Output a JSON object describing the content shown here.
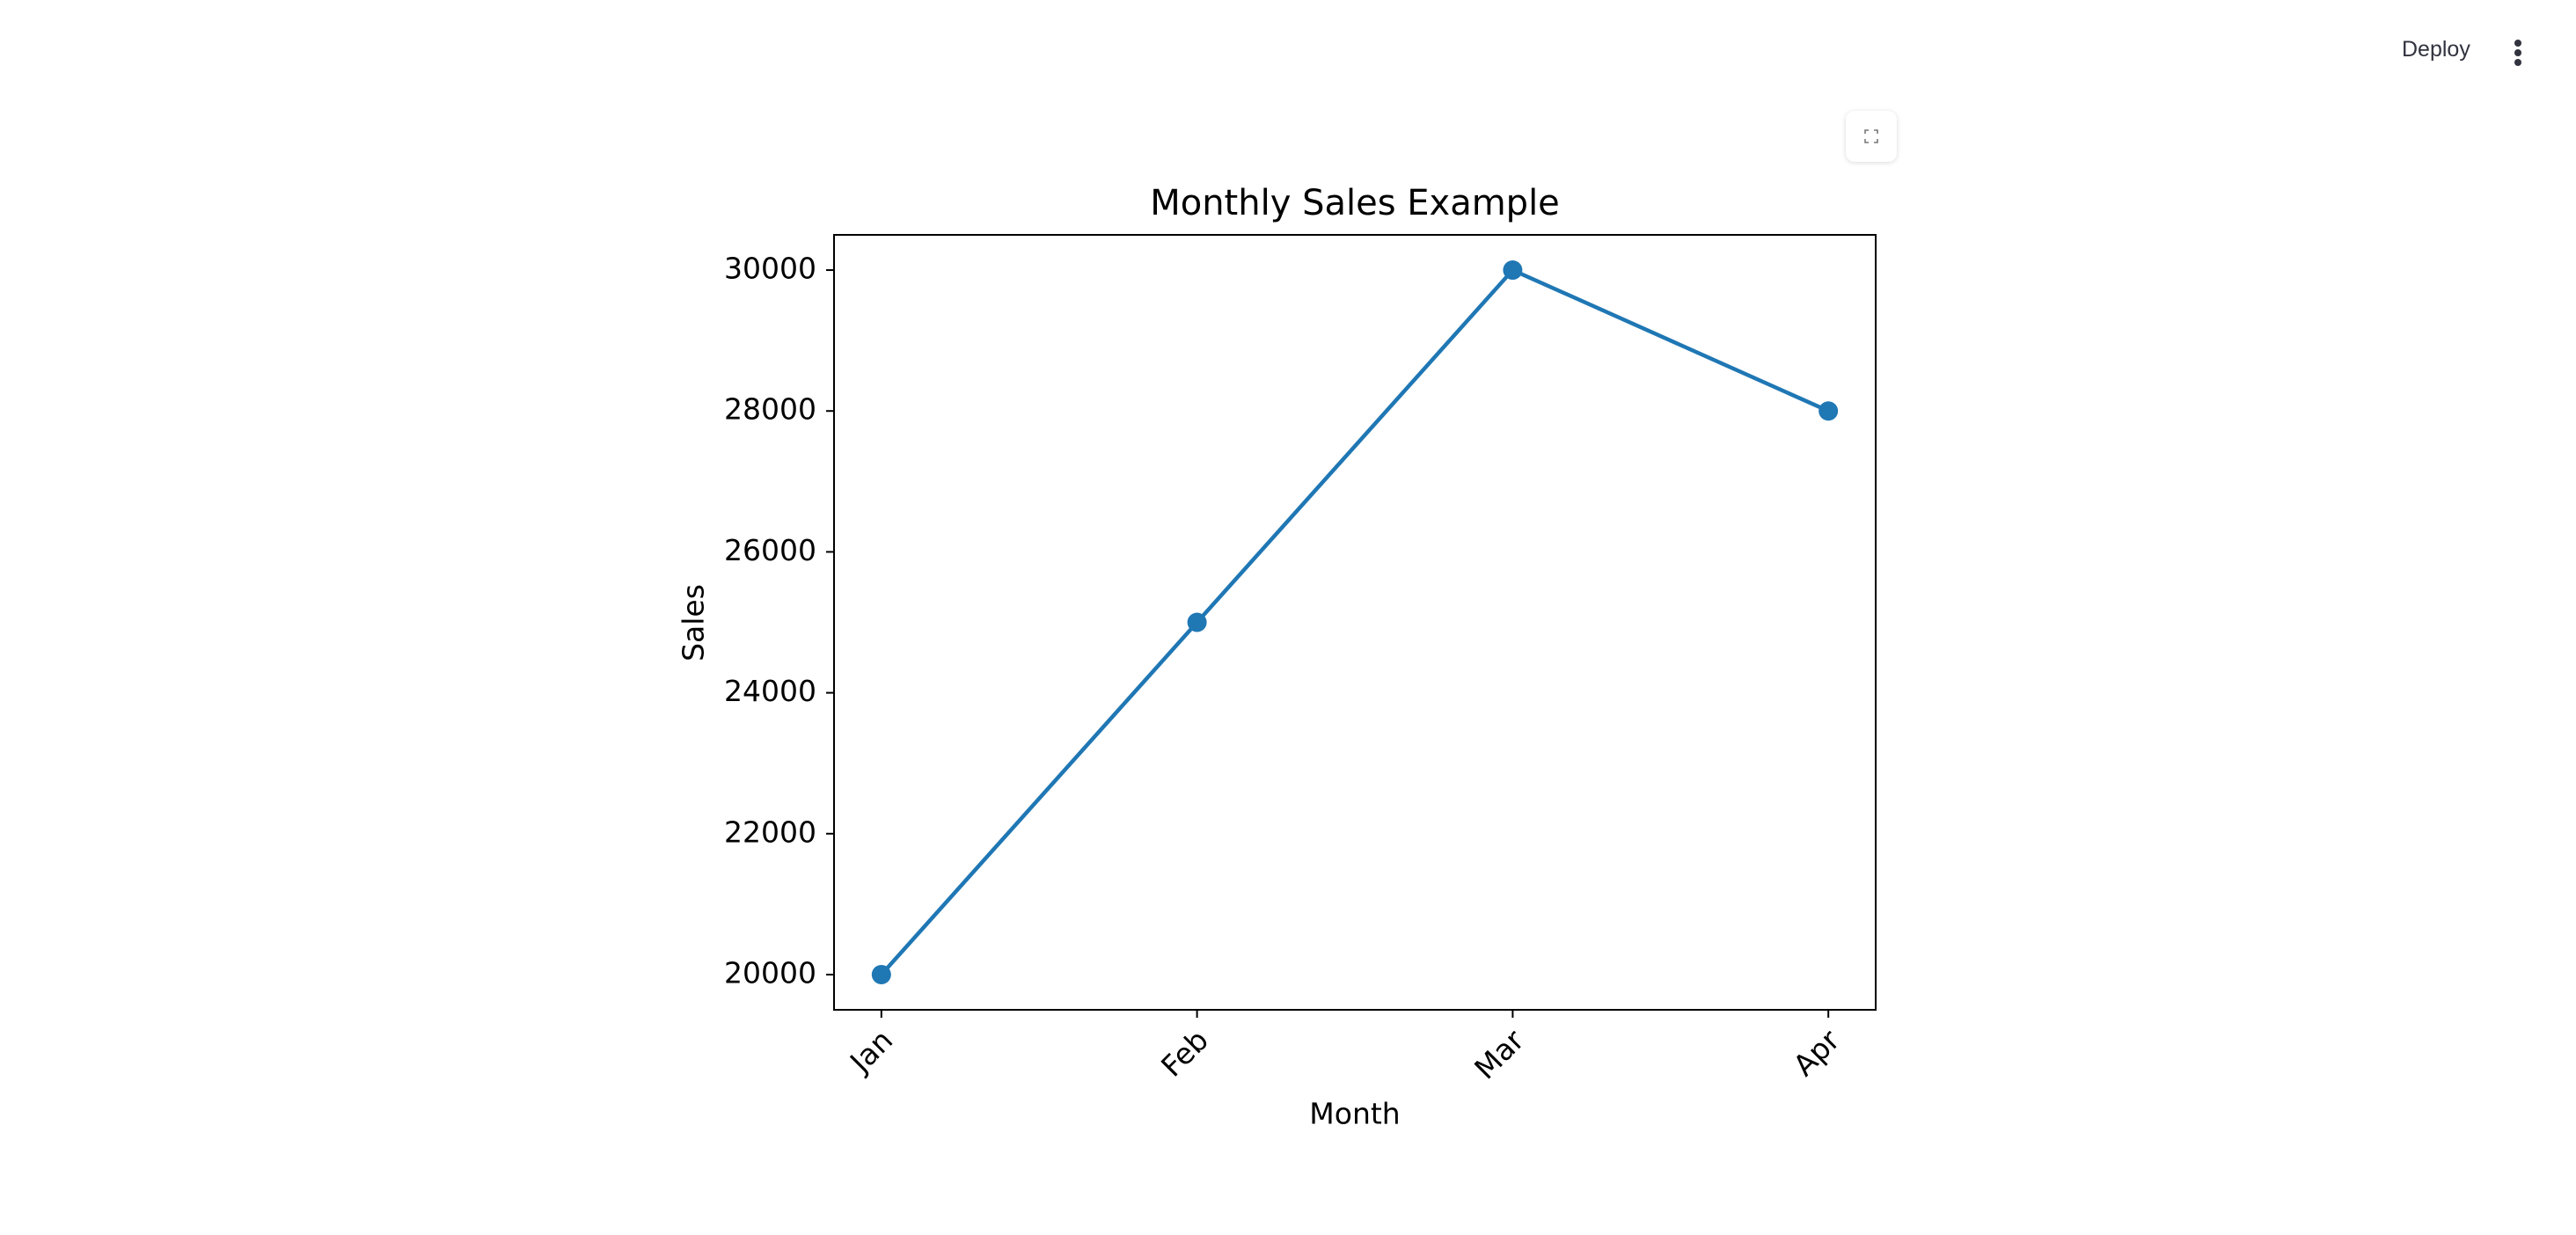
{
  "header": {
    "deploy": "Deploy"
  },
  "chart_data": {
    "type": "line",
    "title": "Monthly Sales Example",
    "x_label": "Month",
    "y_label": "Sales",
    "categories": [
      "Jan",
      "Feb",
      "Mar",
      "Apr"
    ],
    "values": [
      20000,
      25000,
      30000,
      28000
    ],
    "color": "#1f77b4",
    "ylim": [
      19500,
      30500
    ],
    "yticks": [
      20000,
      22000,
      24000,
      26000,
      28000,
      30000
    ],
    "grid": false
  }
}
